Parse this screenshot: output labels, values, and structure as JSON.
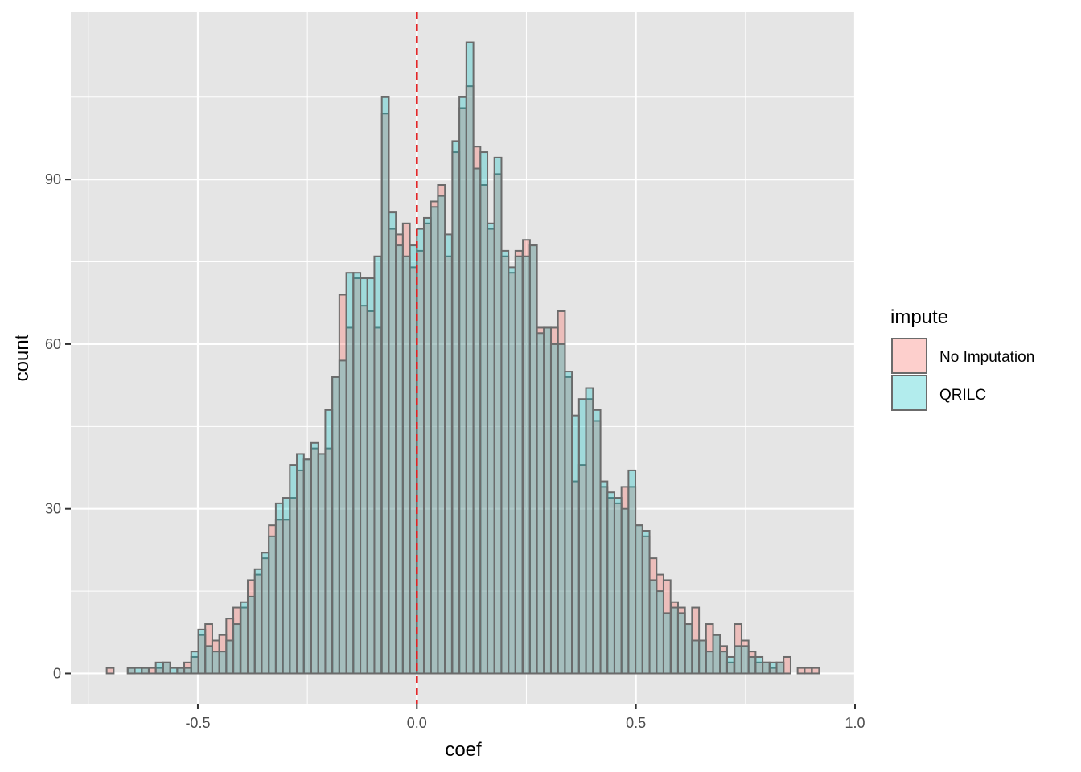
{
  "chart_data": {
    "type": "histogram",
    "xlabel": "coef",
    "ylabel": "count",
    "xlim": [
      -0.79,
      1.0
    ],
    "ylim": [
      -5.5,
      120.5
    ],
    "x_ticks": [
      -0.5,
      0.0,
      0.5,
      1.0
    ],
    "x_tick_labels": [
      "-0.5",
      "0.0",
      "0.5",
      "1.0"
    ],
    "y_ticks": [
      0,
      30,
      60,
      90
    ],
    "y_tick_labels": [
      "0",
      "30",
      "60",
      "90"
    ],
    "grid": true,
    "bin_width": 0.0161,
    "reference_line": {
      "x": 0.0,
      "color": "#e41a1c",
      "style": "dashed"
    },
    "colors": {
      "panel": "#e5e5e5",
      "grid": "#ffffff",
      "bar_outline": "#6b6b6b"
    },
    "legend": {
      "title": "impute",
      "position": "right",
      "entries": [
        {
          "name": "No Imputation",
          "color": "#f8766d"
        },
        {
          "name": "QRILC",
          "color": "#00bfc4"
        }
      ]
    },
    "series": [
      {
        "name": "No Imputation",
        "color": "#f8766d",
        "bin_centers": [
          -0.7,
          -0.684,
          -0.668,
          -0.652,
          -0.636,
          -0.62,
          -0.604,
          -0.588,
          -0.571,
          -0.555,
          -0.539,
          -0.523,
          -0.507,
          -0.491,
          -0.475,
          -0.459,
          -0.443,
          -0.427,
          -0.411,
          -0.394,
          -0.378,
          -0.362,
          -0.346,
          -0.33,
          -0.314,
          -0.298,
          -0.282,
          -0.266,
          -0.25,
          -0.233,
          -0.217,
          -0.201,
          -0.185,
          -0.169,
          -0.153,
          -0.137,
          -0.121,
          -0.105,
          -0.089,
          -0.072,
          -0.056,
          -0.04,
          -0.024,
          -0.008,
          0.008,
          0.024,
          0.04,
          0.056,
          0.072,
          0.089,
          0.105,
          0.121,
          0.137,
          0.153,
          0.169,
          0.185,
          0.201,
          0.217,
          0.233,
          0.25,
          0.266,
          0.282,
          0.298,
          0.314,
          0.33,
          0.346,
          0.362,
          0.378,
          0.394,
          0.411,
          0.427,
          0.443,
          0.459,
          0.475,
          0.491,
          0.507,
          0.523,
          0.539,
          0.555,
          0.571,
          0.588,
          0.604,
          0.62,
          0.636,
          0.652,
          0.668,
          0.684,
          0.7,
          0.716,
          0.733,
          0.749,
          0.765,
          0.781,
          0.797,
          0.813,
          0.829,
          0.845,
          0.861,
          0.877,
          0.893,
          0.91
        ],
        "values": [
          1,
          0,
          0,
          1,
          0,
          1,
          1,
          1,
          2,
          0,
          1,
          2,
          3,
          7,
          9,
          6,
          7,
          10,
          12,
          12,
          17,
          18,
          21,
          27,
          28,
          28,
          32,
          37,
          39,
          41,
          40,
          41,
          54,
          69,
          63,
          72,
          67,
          66,
          63,
          102,
          81,
          80,
          82,
          74,
          77,
          82,
          86,
          89,
          76,
          95,
          103,
          107,
          96,
          89,
          81,
          91,
          76,
          73,
          77,
          79,
          78,
          63,
          63,
          63,
          66,
          54,
          35,
          38,
          50,
          46,
          34,
          32,
          31,
          34,
          34,
          27,
          25,
          21,
          18,
          17,
          13,
          12,
          9,
          12,
          6,
          9,
          7,
          5,
          2,
          9,
          6,
          4,
          2,
          2,
          1,
          2,
          3,
          0,
          1,
          1,
          1
        ]
      },
      {
        "name": "QRILC",
        "color": "#00bfc4",
        "bin_centers": [
          -0.7,
          -0.684,
          -0.668,
          -0.652,
          -0.636,
          -0.62,
          -0.604,
          -0.588,
          -0.571,
          -0.555,
          -0.539,
          -0.523,
          -0.507,
          -0.491,
          -0.475,
          -0.459,
          -0.443,
          -0.427,
          -0.411,
          -0.394,
          -0.378,
          -0.362,
          -0.346,
          -0.33,
          -0.314,
          -0.298,
          -0.282,
          -0.266,
          -0.25,
          -0.233,
          -0.217,
          -0.201,
          -0.185,
          -0.169,
          -0.153,
          -0.137,
          -0.121,
          -0.105,
          -0.089,
          -0.072,
          -0.056,
          -0.04,
          -0.024,
          -0.008,
          0.008,
          0.024,
          0.04,
          0.056,
          0.072,
          0.089,
          0.105,
          0.121,
          0.137,
          0.153,
          0.169,
          0.185,
          0.201,
          0.217,
          0.233,
          0.25,
          0.266,
          0.282,
          0.298,
          0.314,
          0.33,
          0.346,
          0.362,
          0.378,
          0.394,
          0.411,
          0.427,
          0.443,
          0.459,
          0.475,
          0.491,
          0.507,
          0.523,
          0.539,
          0.555,
          0.571,
          0.588,
          0.604,
          0.62,
          0.636,
          0.652,
          0.668,
          0.684,
          0.7,
          0.716,
          0.733,
          0.749,
          0.765,
          0.781,
          0.797,
          0.813,
          0.829,
          0.845,
          0.861,
          0.877,
          0.893,
          0.91
        ],
        "values": [
          0,
          0,
          0,
          1,
          1,
          1,
          0,
          2,
          2,
          1,
          1,
          1,
          4,
          8,
          5,
          4,
          4,
          6,
          9,
          13,
          14,
          19,
          22,
          25,
          31,
          32,
          38,
          40,
          39,
          42,
          40,
          48,
          54,
          57,
          73,
          73,
          72,
          72,
          76,
          105,
          84,
          78,
          76,
          78,
          81,
          83,
          85,
          87,
          80,
          97,
          105,
          115,
          92,
          95,
          82,
          94,
          77,
          74,
          76,
          76,
          78,
          62,
          63,
          60,
          60,
          55,
          47,
          50,
          52,
          48,
          35,
          33,
          32,
          30,
          37,
          27,
          26,
          17,
          15,
          11,
          12,
          11,
          9,
          6,
          6,
          4,
          7,
          4,
          3,
          5,
          5,
          3,
          3,
          2,
          2,
          2,
          0,
          0,
          0,
          0,
          0
        ]
      }
    ]
  }
}
